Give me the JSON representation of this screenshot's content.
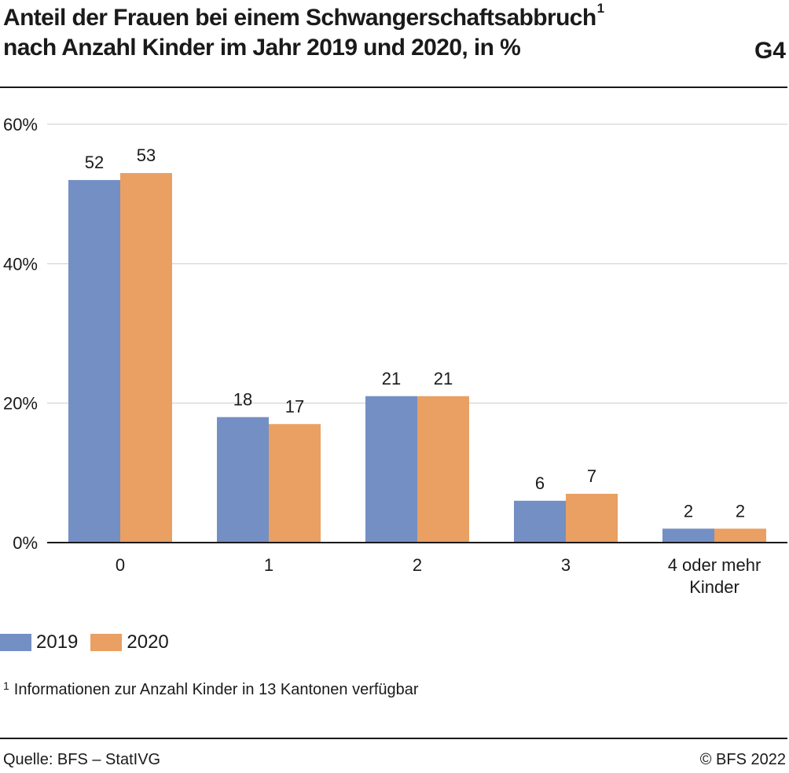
{
  "header": {
    "title_line1": "Anteil der Frauen bei einem Schwangerschaftsabbruch",
    "title_superscript": "1",
    "title_line2": "nach Anzahl Kinder im Jahr 2019 und 2020, in %",
    "figure_id": "G4"
  },
  "footer": {
    "footnote_marker": "1",
    "footnote_text": "Informationen zur Anzahl Kinder in 13 Kantonen verfügbar",
    "source": "Quelle: BFS – StatIVG",
    "copyright": "© BFS 2022"
  },
  "colors": {
    "series_2019": "#748fc4",
    "series_2020": "#e9a062",
    "grid": "#cccccc",
    "axis": "#1a1a1a"
  },
  "chart_data": {
    "type": "bar",
    "title": "Anteil der Frauen bei einem Schwangerschaftsabbruch nach Anzahl Kinder im Jahr 2019 und 2020, in %",
    "xlabel": "",
    "ylabel": "",
    "categories": [
      "0",
      "1",
      "2",
      "3",
      "4 oder mehr Kinder"
    ],
    "category_label_lines": [
      [
        "0"
      ],
      [
        "1"
      ],
      [
        "2"
      ],
      [
        "3"
      ],
      [
        "4 oder mehr",
        "Kinder"
      ]
    ],
    "series": [
      {
        "name": "2019",
        "values": [
          52,
          18,
          21,
          6,
          2
        ]
      },
      {
        "name": "2020",
        "values": [
          53,
          17,
          21,
          7,
          2
        ]
      }
    ],
    "ylim": [
      0,
      60
    ],
    "yticks": [
      0,
      20,
      40,
      60
    ],
    "ytick_labels": [
      "0%",
      "20%",
      "40%",
      "60%"
    ],
    "grid": true,
    "legend_position": "bottom-left",
    "data_labels": true
  }
}
